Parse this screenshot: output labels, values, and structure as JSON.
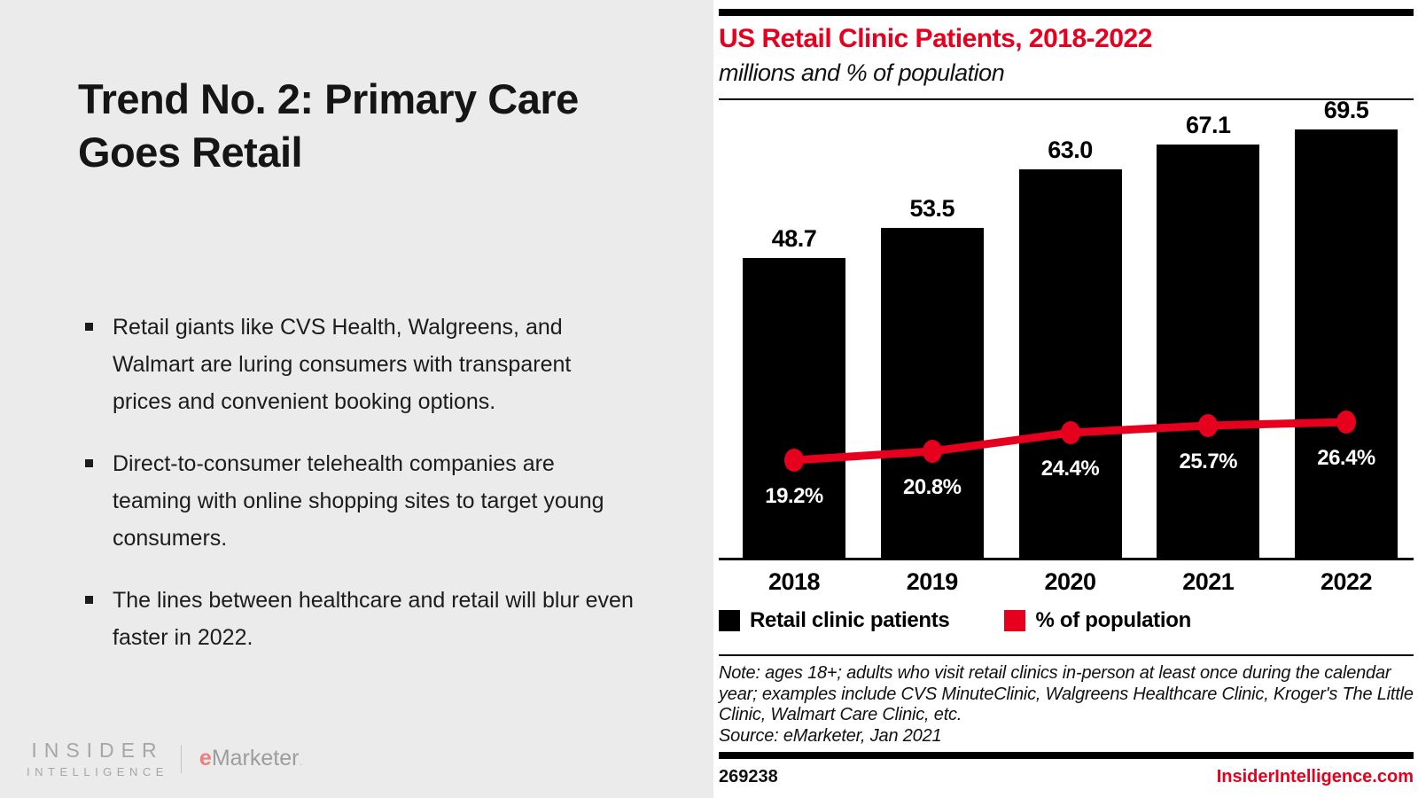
{
  "left_panel": {
    "title": "Trend No. 2: Primary Care Goes Retail",
    "bullets": [
      "Retail giants like CVS Health, Walgreens, and Walmart are luring consumers with transparent prices and convenient booking options.",
      "Direct-to-consumer telehealth companies are teaming with online shopping sites to target young consumers.",
      "The lines between healthcare and retail will blur even faster in 2022."
    ],
    "logo": {
      "insider": "INSIDER",
      "intelligence": "INTELLIGENCE",
      "emarketer_e": "e",
      "emarketer_rest": "Marketer",
      "emarketer_mark": "."
    }
  },
  "chart": {
    "title": "US Retail Clinic Patients, 2018-2022",
    "subtitle": "millions and % of population",
    "accent_red": "#e6001e",
    "legend": [
      {
        "label": "Retail clinic patients",
        "color": "#000000"
      },
      {
        "label": "% of population",
        "color": "#e6001e"
      }
    ],
    "note_lines": [
      "Note: ages 18+; adults who visit retail clinics in-person at least once during the calendar",
      "year; examples include CVS MinuteClinic, Walgreens Healthcare Clinic, Kroger's The Little",
      "Clinic, Walmart Care Clinic, etc."
    ],
    "source": "Source: eMarketer, Jan 2021",
    "chart_id": "269238",
    "website": "InsiderIntelligence.com"
  },
  "chart_data": {
    "type": "bar",
    "title": "US Retail Clinic Patients, 2018-2022",
    "subtitle": "millions and % of population",
    "categories": [
      "2018",
      "2019",
      "2020",
      "2021",
      "2022"
    ],
    "series": [
      {
        "name": "Retail clinic patients",
        "type": "bar",
        "unit": "millions",
        "color": "#000000",
        "values": [
          48.7,
          53.5,
          63.0,
          67.1,
          69.5
        ]
      },
      {
        "name": "% of population",
        "type": "line",
        "unit": "%",
        "color": "#e6001e",
        "values": [
          19.2,
          20.8,
          24.4,
          25.7,
          26.4
        ]
      }
    ],
    "xlabel": "",
    "ylabel": "",
    "grid": false,
    "legend_position": "bottom",
    "value_labels": "above bars (millions), white % labels inside bars"
  }
}
